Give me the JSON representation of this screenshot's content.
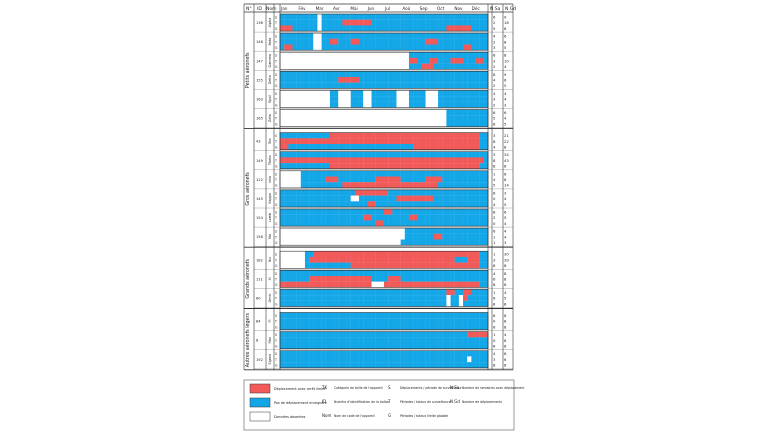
{
  "colors": {
    "red": "#f25a5a",
    "blue": "#14a7e8",
    "white": "#ffffff",
    "border": "#333333"
  },
  "header": {
    "no": "N°",
    "id": "ID",
    "nom": "Nom",
    "nb_a": "N Sa",
    "nb_b": "N Gd"
  },
  "months": [
    "Jan",
    "Fév",
    "Mar",
    "Avr",
    "Mai",
    "Jun",
    "Jul",
    "Aoû",
    "Sep",
    "Oct",
    "Nov",
    "Déc"
  ],
  "chart_data": {
    "type": "heatmap",
    "x_categories": [
      "Jan",
      "Fév",
      "Mar",
      "Avr",
      "Mai",
      "Jun",
      "Jul",
      "Aoû",
      "Sep",
      "Oct",
      "Nov",
      "Déc"
    ],
    "groups": [
      {
        "label": "Petits aéronefs",
        "stations": [
          {
            "id": "136",
            "name": "Alpha",
            "counts": [
              "6",
              "2",
              "5"
            ],
            "values": [
              "9",
              "18",
              "8"
            ],
            "rows": [
              "BBBBBBBBBWBBBBBBBBBBBBBBBBBBBBBBBBBBBBBBBBBBBBBBBB",
              "BBBBBBBBBWBBBBBRRRRRRRBBBBBBBBBBBBBBBBBBBBBBBBBBBB",
              "RRRBBBBBBWBBBBBBBBBBBBBBBBBBBBBBBBBBBBBBRRRRRRBBBB"
            ]
          },
          {
            "id": "148",
            "name": "Beta",
            "counts": [
              "4",
              "2",
              "3"
            ],
            "values": [
              "6",
              "8",
              "5"
            ],
            "rows": [
              "BBBBBBBBWWBBBBBBBBBBBBBBBBBBBBBBBBBBBBBBBBBBBBBBBB",
              "BBBBBBBBWWBBRRBBBRRBBBBBBBBBBBBBBBBRRRBBBBBBBBBBBB",
              "BRRBBBBBWWBBBBBBBBBBBBBBBBBBBBBBBBBBBBBBBBBBRRBBBB"
            ]
          },
          {
            "id": "147",
            "name": "Gamma",
            "counts": [
              "6",
              "3",
              "2"
            ],
            "values": [
              "8",
              "10",
              "4"
            ],
            "rows": [
              "WWWWWWWWWWWWWWWWWWWWWWWWWWWWWWWBBBBBBBBBBBBBBBBBBB",
              "WWWWWWWWWWWWWWWWWWWWWWWWWWWWWWWRRBBBRRBBBRRRBBBRRB",
              "WWWWWWWWWWWWWWWWWWWWWWWWWWWWWWWBBBRRRBBBBBBBBBBBBB"
            ]
          },
          {
            "id": "155",
            "name": "Delta",
            "counts": [
              "8",
              "4",
              "2"
            ],
            "values": [
              "9",
              "6",
              "5"
            ],
            "rows": [
              "BBBBBBBBBBBBBBBBBBBBBBBBBBBBBBBBBBBBBBBBBBBBBBBBBB",
              "BBBBBBBBBBBBBBRRRRRBBBBBBBBBBBBBBBBBBBBBBBBBBBBBBB",
              "BBBBBBBBBBBBBBBBBBBBBBBBBBBBBBBBBBBBBBBBBBBBBBBBBB"
            ]
          },
          {
            "id": "163",
            "name": "Epsil",
            "counts": [
              "4",
              "3",
              "2"
            ],
            "values": [
              "4",
              "4",
              "3"
            ],
            "rows": [
              "WWWWWWWWWWWWBBWWWBBBWWBBBBBBWWWBBBBWWWBBBBBBBBBBBB",
              "WWWWWWWWWWWWBBWWWBBBWWBBBBBBWWWBBBBWWWBBBBBBBBBBBB",
              "WWWWWWWWWWWWBBWWWBBBWWBBBBBBWWWBBBBWWWBBBBBBBBBBBB"
            ]
          },
          {
            "id": "165",
            "name": "Zeta",
            "counts": [
              "6",
              "5",
              "8"
            ],
            "values": [
              "6",
              "4",
              "5"
            ],
            "rows": [
              "WWWWWWWWWWWWWWWWWWWWWWWWWWWWWWWWWWWWWWWWBBBBBBBBBB",
              "WWWWWWWWWWWWWWWWWWWWWWWWWWWWWWWWWWWWWWWWBBBBBBBBBB",
              "WWWWWWWWWWWWWWWWWWWWWWWWWWWWWWWWWWWWWWWWBBBBBBBBBB"
            ]
          }
        ]
      },
      {
        "label": "Gros aéronefs",
        "stations": [
          {
            "id": "43",
            "name": "Eta",
            "counts": [
              "3",
              "8",
              "4"
            ],
            "values": [
              "21",
              "22",
              "8"
            ],
            "rows": [
              "BBBBBBBBBBBBRRRRRRRRRRRRRRRRRRRRRRRRRRRRRRRRRRRRBB",
              "RRRRRRRRRRRRRRRRRRRRRRRRRRRRRRRRRRRRRRRRRRRRRRRRBB",
              "RRBBBBBBBBBBBBBBBBBBBBBBBBBBBBBBRRRRRRRRRRRRRRRRBB"
            ]
          },
          {
            "id": "149",
            "name": "Theta",
            "counts": [
              "3",
              "8",
              "8"
            ],
            "values": [
              "34",
              "43",
              "8"
            ],
            "rows": [
              "BBBBBBBBBBBBBBBBBBBBBBBBBBBBBBBBBBBBBBBBBBBBBBBBBB",
              "RRRRRRRRRRRRRRRRRRRRRRRRRRRRRRRRRRRRRRRRRRRRRRRRRB",
              "BBBBBBBBBBBBRRRRRRRRRRRRRRRRRRRRRRRRRRRRRRRRRRRRBB"
            ]
          },
          {
            "id": "122",
            "name": "Iota",
            "counts": [
              "1",
              "4",
              "5"
            ],
            "values": [
              "6",
              "6",
              "14"
            ],
            "rows": [
              "WWWWWBBBBBBBBBBBBBBBBBBBBBBBBBBBBBBBBBBBBBBBBBBBBB",
              "WWWWWBBBBBBRRRBBBBBBBBBRRRRRRBBBBBBRRRRBBBBBBBBBBB",
              "WWWWWBBBBBBBBBBRRRRRRRRRRRRRRRRRRRRRRRBBBBBBBBBBBB"
            ]
          },
          {
            "id": "145",
            "name": "Kappa",
            "counts": [
              "8",
              "0",
              "4"
            ],
            "values": [
              "3",
              "4",
              "5"
            ],
            "rows": [
              "BBBBBBBBBBBBBBBBBBRRRRRRRRBBBBBBBBBBBBBBBBBBBBBBBB",
              "BBBBBBBBBBBBBBBBBWWBBBBBBBBBRRRRRRRRRBBBBBBBBBBBBB",
              "BBBBBBBBBBBBBBBBBBBBBRRBBBBBBBBBBBBBBBBBBBBBBBBBBB"
            ]
          },
          {
            "id": "154",
            "name": "Lamb",
            "counts": [
              "8",
              "2",
              "0"
            ],
            "values": [
              "6",
              "5",
              "4"
            ],
            "rows": [
              "BBBBBBBBBBBBBBBBBBBBBBBBBRRBBBBBBBBBBBBBBBBBBBBBBB",
              "BBBBBBBBBBBBBBBBBBBBRRBBBBBBBBBRRBBBBBBBBBBBBBBBBB",
              "BBBBBBBBBBBBBBBBBBBBBBBRRBBBBBBBBBBBBBBBBBBBBBBBBB"
            ]
          },
          {
            "id": "158",
            "name": "Mu",
            "counts": [
              "6",
              "1",
              "1"
            ],
            "values": [
              "4",
              "4",
              "3"
            ],
            "rows": [
              "WWWWWWWWWWWWWWWWWWWWWWWWWWWWWWBBBBBBBBBBBBBBBBBBBB",
              "WWWWWWWWWWWWWWWWWWWWWWWWWWWWWWBBBBBBBRRBBBBBBBBBBB",
              "WWWWWWWWWWWWWWWWWWWWWWWWWWWWWBBBBBBBBBBBBBBBBBBBBB"
            ]
          }
        ]
      },
      {
        "label": "Grands aéronefs",
        "stations": [
          {
            "id": "182",
            "name": "Nu",
            "counts": [
              "1",
              "3",
              "8"
            ],
            "values": [
              "30",
              "39",
              "8"
            ],
            "rows": [
              "WWWWWWBBRRRRRRRRRRRRRRRRRRRRRRRRRRRRRRRRRRRRRRRRBB",
              "WWWWWWBRRRRRRRRRRRRRRRRRRRRRRRRRRRRRRRRRRRBBBRRRBB",
              "WWWWWWBBBBBBBBBBBRRRRRRRRRRRRRRRRRRRRRRRRRRRRRRRBB"
            ]
          },
          {
            "id": "111",
            "name": "Xi",
            "counts": [
              "4",
              "6",
              "8"
            ],
            "values": [
              "8",
              "8",
              "8"
            ],
            "rows": [
              "BBBBBBBBBBBBBBBBBBBBBBBBBBBBBBBBBBBBBBBBBBBBBBBBBB",
              "BBBBBBBRRRRRRRRRRRRRRRBBBBRRRBBBBBBBBBBBBBBBBBBBBB",
              "RRRRRRRRRRRRRRRRRRRRRRWWWRRRRRRRRRRRRRRRRRRRRRRRBB"
            ]
          },
          {
            "id": "60",
            "name": "Omic",
            "counts": [
              "1",
              "6",
              "8"
            ],
            "values": [
              "4",
              "5",
              "8"
            ],
            "rows": [
              "BBBBBBBBBBBBBBBBBBBBBBBBBBBBBBBBBBBBBBBBRRBBRRBBBB",
              "BBBBBBBBBBBBBBBBBBBBBBBBBBBBBBBBBBBBBBBBWBBWRBBBBB",
              "BBBBBBBBBBBBBBBBBBBBBBBBBBBBBBBBBBBBBBBBWBBWBBBBBB"
            ]
          }
        ]
      },
      {
        "label": "Autres aéronefs légers",
        "stations": [
          {
            "id": "84",
            "name": "Pi",
            "counts": [
              "6",
              "0",
              "6"
            ],
            "values": [
              "8",
              "8",
              "8"
            ],
            "rows": [
              "BBBBBBBBBBBBBBBBBBBBBBBBBBBBBBBBBBBBBBBBBBBBBBBBBB",
              "BBBBBBBBBBBBBBBBBBBBBBBBBBBBBBBBBBBBBBBBBBBBBBBBBB",
              "BBBBBBBBBBBBBBBBBBBBBBBBBBBBBBBBBBBBBBBBBBBBBBBBBB"
            ]
          },
          {
            "id": "8",
            "name": "Rho",
            "counts": [
              "1",
              "0",
              "6"
            ],
            "values": [
              "4",
              "8",
              "8"
            ],
            "rows": [
              "BBBBBBBBBBBBBBBBBBBBBBBBBBBBBBBBBBBBBBBBBBBBBRRRRR",
              "BBBBBBBBBBBBBBBBBBBBBBBBBBBBBBBBBBBBBBBBBBBBBBBBBB",
              "BBBBBBBBBBBBBBBBBBBBBBBBBBBBBBBBBBBBBBBBBBBBBBBBBB"
            ]
          },
          {
            "id": "192",
            "name": "Sigma",
            "counts": [
              "4",
              "3",
              "8"
            ],
            "values": [
              "8",
              "6",
              "8"
            ],
            "rows": [
              "BBBBBBBBBBBBBBBBBBBBBBBBBBBBBBBBBBBBBBBBBBBBBBBBBB",
              "BBBBBBBBBBBBBBBBBBBBBBBBBBBBBBBBBBBBBBBBBBBBBWBBBB",
              "BBBBBBBBBBBBBBBBBBBBBBBBBBBBBBBBBBBBBBBBBBBBBBBBBB"
            ]
          }
        ]
      }
    ]
  },
  "legend": {
    "items": [
      {
        "color": "red",
        "label": "Déplacement avec arrêt limité"
      },
      {
        "color": "blue",
        "label": "Pas de déplacement enregistré"
      },
      {
        "color": "white",
        "label": "Données absentes"
      }
    ],
    "symbol_groups": [
      {
        "entries": [
          {
            "sym": "TK",
            "text": "Catégorie de taille de l'appareil"
          },
          {
            "sym": "ID",
            "text": "Numéro d'identification de la balise"
          },
          {
            "sym": "Nom",
            "text": "Nom de code de l'appareil"
          }
        ]
      },
      {
        "entries": [
          {
            "sym": "S",
            "text": "Déplacements / période de surveillance"
          },
          {
            "sym": "T",
            "text": "Périodes / totaux de surveillance"
          },
          {
            "sym": "G",
            "text": "Périodes / totaux limite globale"
          }
        ]
      },
      {
        "entries": [
          {
            "sym": "N Sa",
            "text": "Nombre de semaines avec déplacement"
          },
          {
            "sym": "N Gd",
            "text": "Nombre de déplacements"
          }
        ]
      }
    ]
  }
}
